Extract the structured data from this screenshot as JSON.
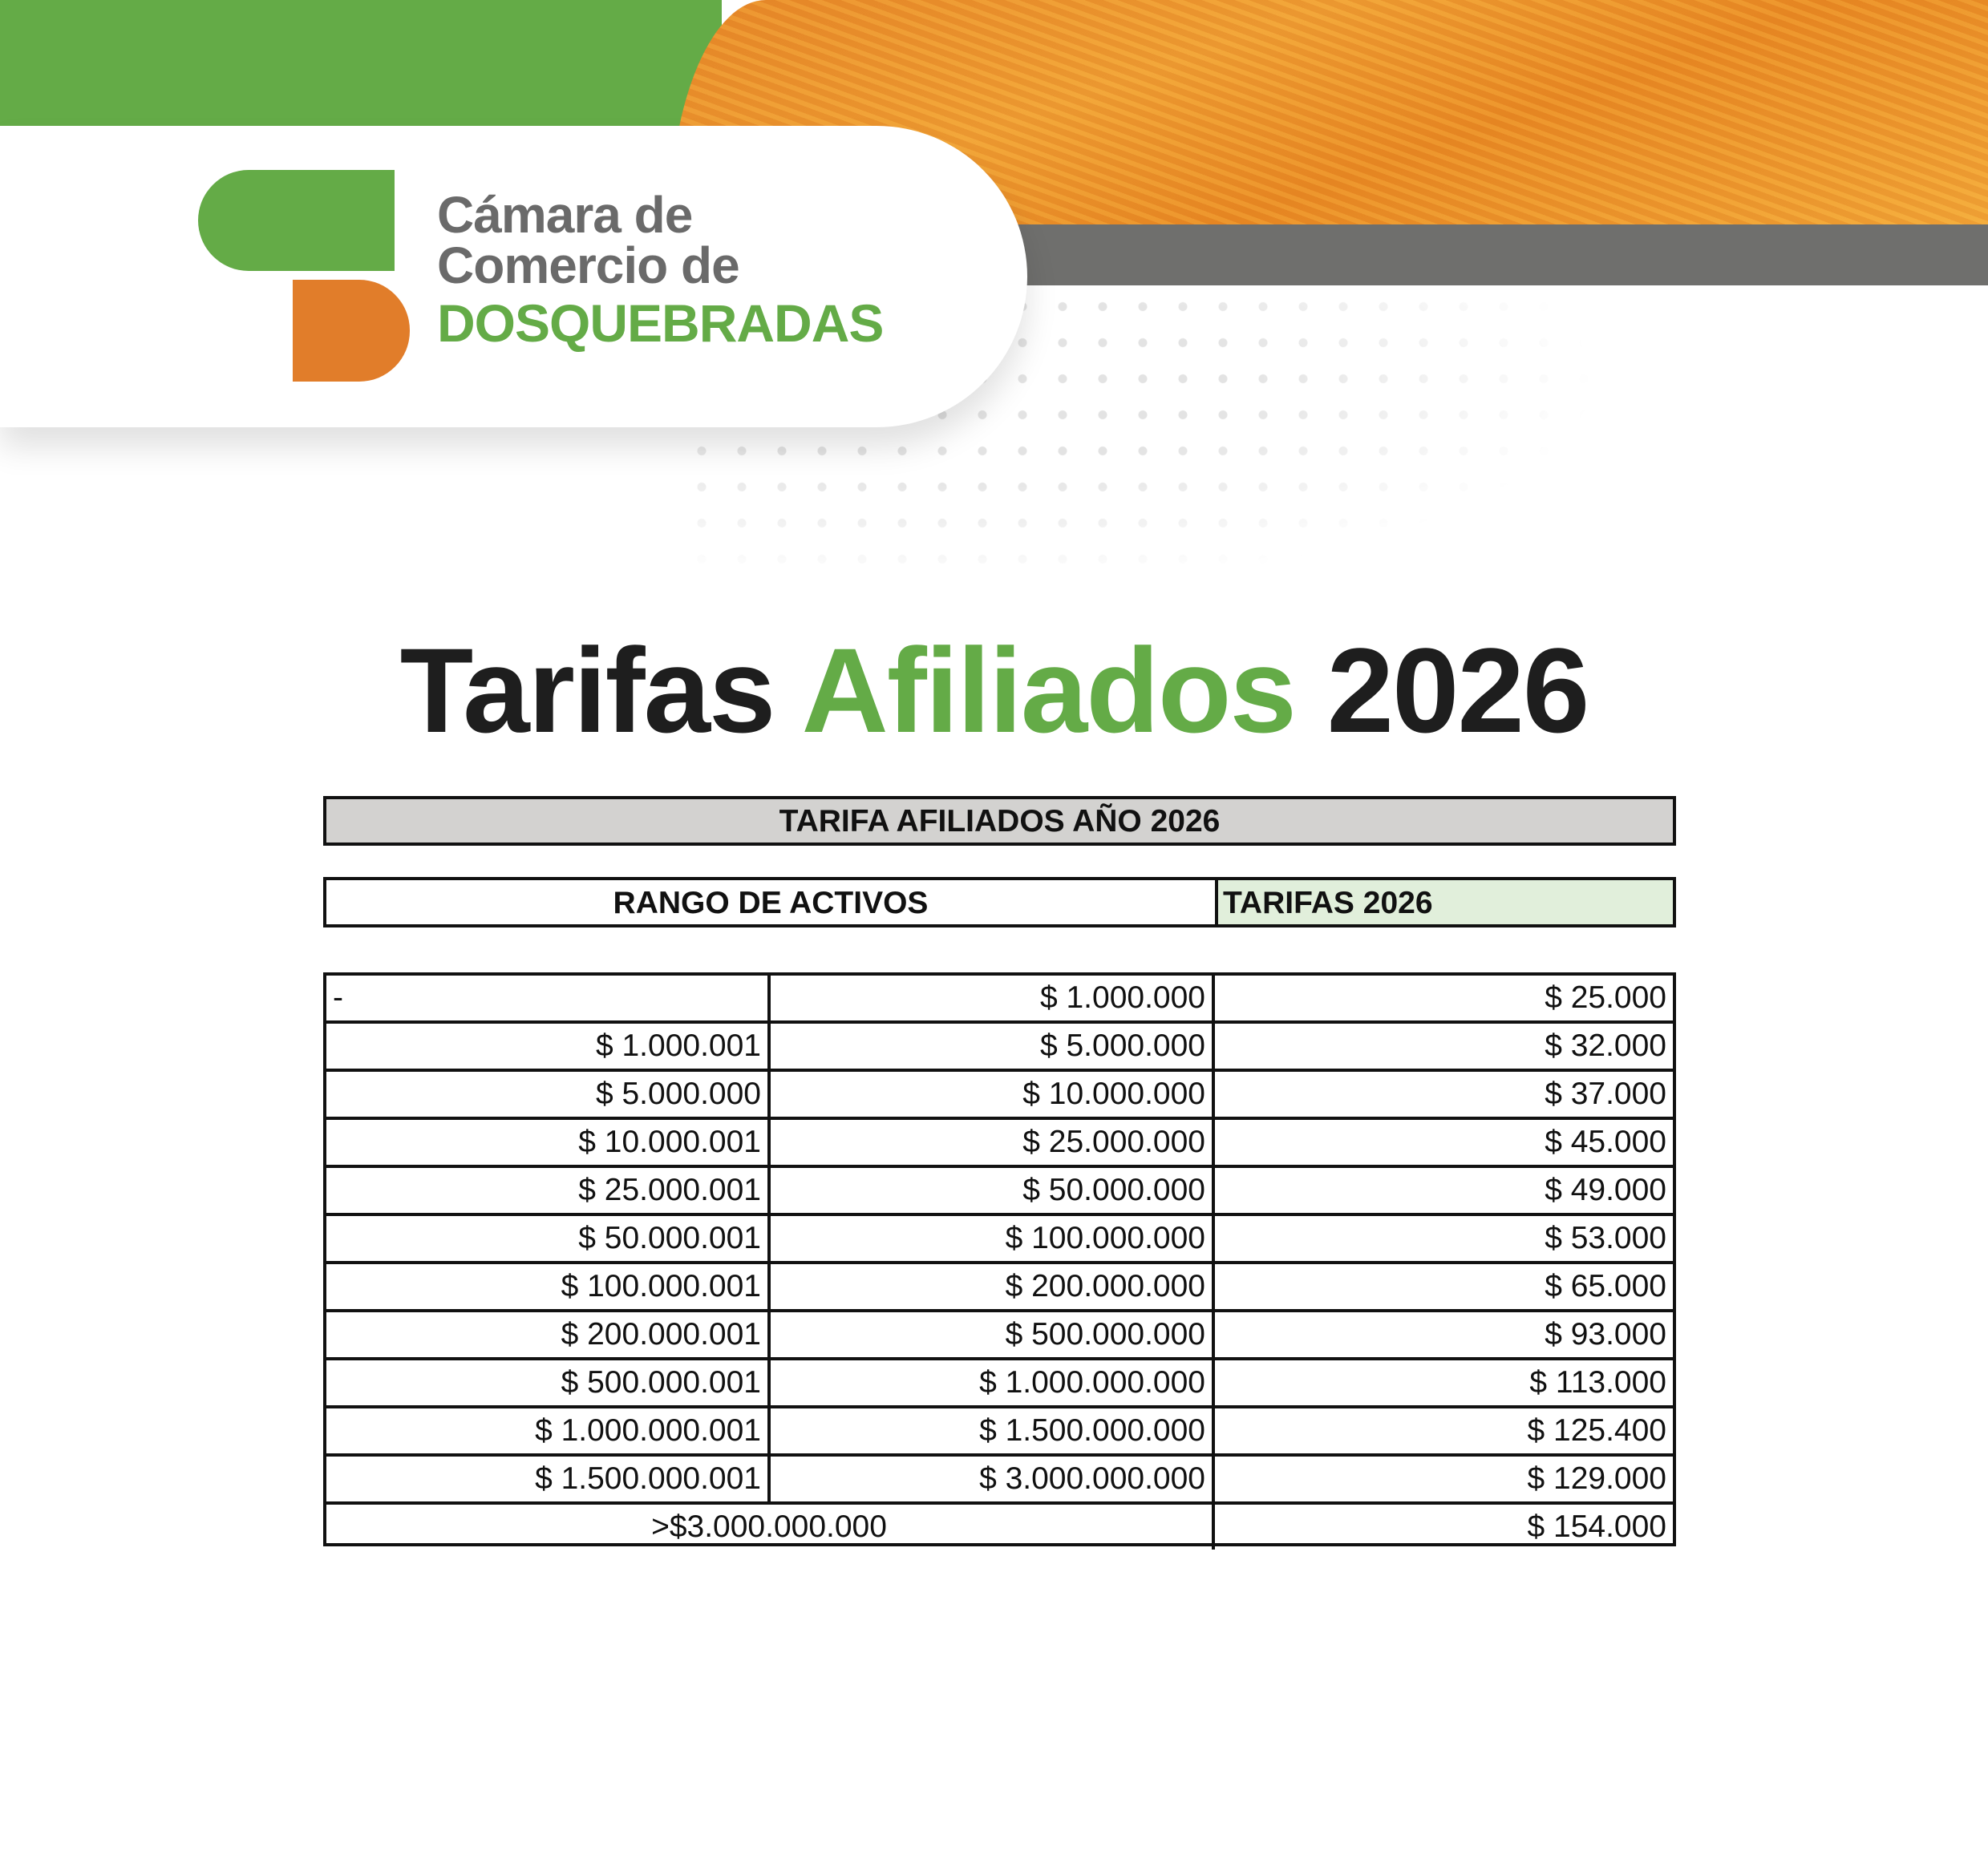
{
  "brand": {
    "line1": "Cámara de",
    "line2": "Comercio de",
    "line3": "DOSQUEBRADAS",
    "colors": {
      "green": "#64ab47",
      "orange": "#e17d2a",
      "gray": "#6f6f6d"
    }
  },
  "title": {
    "part1": "Tarifas",
    "part2": "Afiliados",
    "part3": "2026"
  },
  "table": {
    "caption": "TARIFA AFILIADOS AÑO 2026",
    "headers": {
      "range": "RANGO DE ACTIVOS",
      "fee": "TARIFAS 2026"
    },
    "rows": [
      {
        "from": "-",
        "to": "$ 1.000.000",
        "fee": "$ 25.000"
      },
      {
        "from": "$ 1.000.001",
        "to": "$ 5.000.000",
        "fee": "$ 32.000"
      },
      {
        "from": "$ 5.000.000",
        "to": "$ 10.000.000",
        "fee": "$ 37.000"
      },
      {
        "from": "$ 10.000.001",
        "to": "$ 25.000.000",
        "fee": "$ 45.000"
      },
      {
        "from": "$ 25.000.001",
        "to": "$ 50.000.000",
        "fee": "$ 49.000"
      },
      {
        "from": "$ 50.000.001",
        "to": "$ 100.000.000",
        "fee": "$ 53.000"
      },
      {
        "from": "$ 100.000.001",
        "to": "$ 200.000.000",
        "fee": "$ 65.000"
      },
      {
        "from": "$ 200.000.001",
        "to": "$ 500.000.000",
        "fee": "$ 93.000"
      },
      {
        "from": "$ 500.000.001",
        "to": "$ 1.000.000.000",
        "fee": "$ 113.000"
      },
      {
        "from": "$ 1.000.000.001",
        "to": "$ 1.500.000.000",
        "fee": "$ 125.400"
      },
      {
        "from": "$ 1.500.000.001",
        "to": "$ 3.000.000.000",
        "fee": "$ 129.000"
      }
    ],
    "last_row": {
      "range": ">$3.000.000.000",
      "fee": "$ 154.000"
    }
  }
}
